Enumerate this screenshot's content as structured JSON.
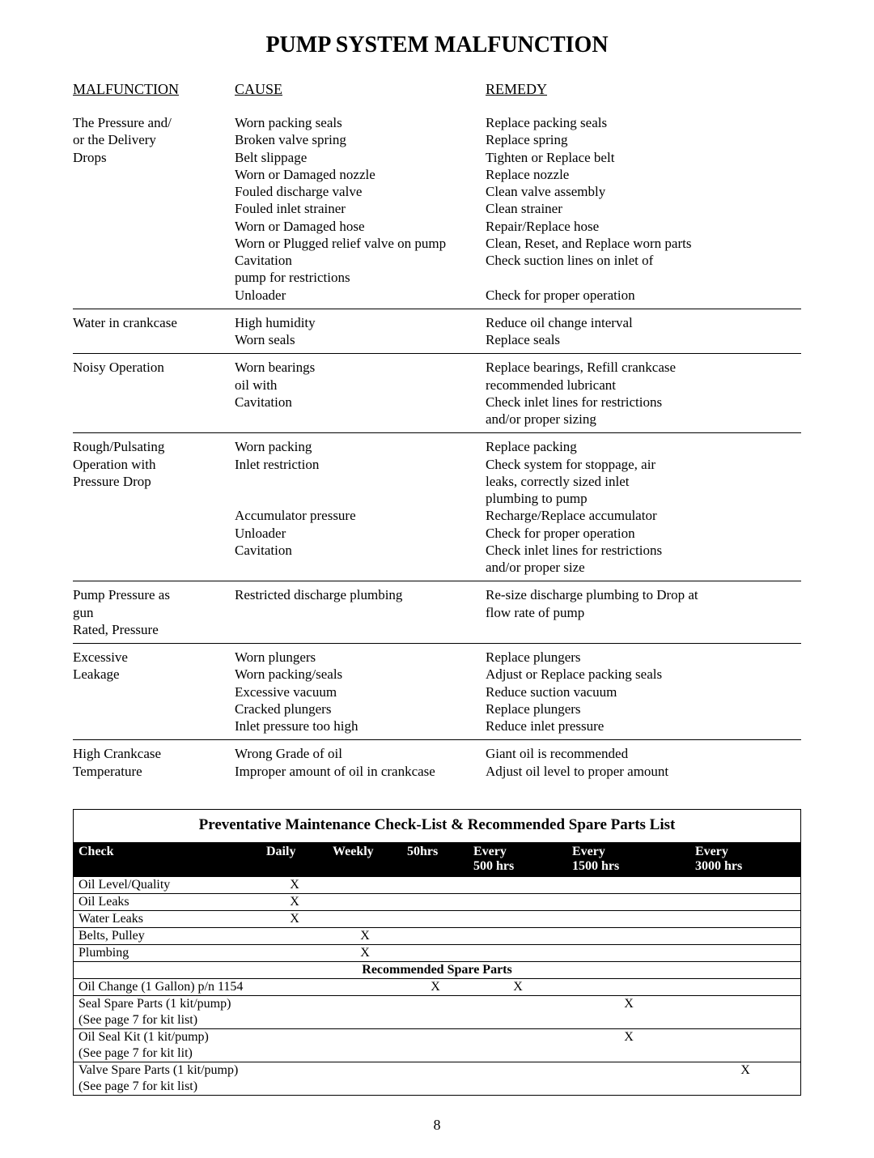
{
  "title": "PUMP SYSTEM MALFUNCTION",
  "headers": {
    "mal": "MALFUNCTION",
    "cause": "CAUSE",
    "remedy": "REMEDY"
  },
  "rows": [
    {
      "mal": [
        "The Pressure and/",
        "or the Delivery",
        "Drops"
      ],
      "cause": [
        "Worn packing seals",
        "Broken valve spring",
        "Belt slippage",
        "Worn or Damaged nozzle",
        "Fouled discharge valve",
        "Fouled inlet strainer",
        "Worn or Damaged hose",
        "Worn or Plugged relief valve on pump",
        "Cavitation",
        "pump for restrictions",
        "Unloader"
      ],
      "remedy": [
        "Replace packing seals",
        "Replace spring",
        "Tighten or Replace belt",
        "Replace nozzle",
        "Clean valve assembly",
        "Clean strainer",
        "Repair/Replace hose",
        "Clean, Reset, and Replace worn parts",
        "Check suction lines on inlet of",
        "",
        "Check for proper operation"
      ]
    },
    {
      "mal": [
        "Water in crankcase"
      ],
      "cause": [
        "High humidity",
        "Worn seals"
      ],
      "remedy": [
        "Reduce oil change interval",
        "Replace seals"
      ]
    },
    {
      "mal": [
        "Noisy Operation"
      ],
      "cause": [
        "Worn bearings",
        "oil with",
        "Cavitation",
        ""
      ],
      "remedy": [
        "Replace bearings, Refill crankcase",
        " recommended lubricant",
        "Check inlet lines for restrictions",
        "and/or proper sizing"
      ]
    },
    {
      "mal": [
        "Rough/Pulsating",
        "Operation with",
        "Pressure Drop"
      ],
      "cause": [
        "Worn packing",
        "Inlet restriction",
        "",
        "",
        "Accumulator pressure",
        "Unloader",
        "Cavitation",
        ""
      ],
      "remedy": [
        "Replace packing",
        "Check system for stoppage, air",
        "leaks, correctly sized inlet",
        "plumbing to pump",
        "Recharge/Replace accumulator",
        "Check for proper operation",
        "Check inlet lines for restrictions",
        "and/or proper size"
      ]
    },
    {
      "mal": [
        "Pump Pressure as",
        "gun",
        "Rated, Pressure"
      ],
      "cause": [
        "Restricted discharge plumbing",
        "",
        ""
      ],
      "remedy": [
        "Re-size discharge plumbing to Drop at",
        "flow rate of pump",
        ""
      ]
    },
    {
      "mal": [
        "Excessive",
        "Leakage"
      ],
      "cause": [
        "Worn plungers",
        "Worn packing/seals",
        "Excessive vacuum",
        "Cracked plungers",
        "Inlet pressure too high"
      ],
      "remedy": [
        "Replace plungers",
        "Adjust or Replace packing seals",
        "Reduce suction vacuum",
        "Replace plungers",
        "Reduce inlet pressure"
      ]
    },
    {
      "mal": [
        "High Crankcase",
        "Temperature"
      ],
      "cause": [
        "Wrong Grade of oil",
        "Improper amount of oil in crankcase"
      ],
      "remedy": [
        "Giant oil is recommended",
        "Adjust oil level to proper amount"
      ]
    }
  ],
  "maint": {
    "title": "Preventative Maintenance Check-List & Recommended Spare Parts List",
    "columns": [
      "Check",
      "Daily",
      "Weekly",
      "50hrs",
      "Every 500 hrs",
      "Every 1500 hrs",
      "Every 3000 hrs"
    ],
    "col_header_html": [
      "Check",
      "Daily",
      "Weekly",
      "50hrs",
      "Every<br>500 hrs",
      "Every<br>1500 hrs",
      "Every<br>3000 hrs"
    ],
    "pre_rows": [
      {
        "check": "Oil Level/Quality",
        "marks": [
          "X",
          "",
          "",
          "",
          "",
          ""
        ]
      },
      {
        "check": "Oil Leaks",
        "marks": [
          "X",
          "",
          "",
          "",
          "",
          ""
        ]
      },
      {
        "check": "Water Leaks",
        "marks": [
          "X",
          "",
          "",
          "",
          "",
          ""
        ]
      },
      {
        "check": "Belts, Pulley",
        "marks": [
          "",
          "X",
          "",
          "",
          "",
          ""
        ]
      },
      {
        "check": "Plumbing",
        "marks": [
          "",
          "X",
          "",
          "",
          "",
          ""
        ]
      }
    ],
    "spare_header": "Recommended Spare Parts",
    "spare_rows": [
      {
        "check": [
          "Oil Change (1 Gallon) p/n 1154"
        ],
        "marks": [
          "",
          "",
          "X",
          "X",
          "",
          ""
        ]
      },
      {
        "check": [
          "Seal Spare Parts (1 kit/pump)",
          "(See page 7 for kit list)"
        ],
        "marks": [
          "",
          "",
          "",
          "",
          "X",
          ""
        ]
      },
      {
        "check": [
          "Oil Seal Kit (1 kit/pump)",
          "(See page 7 for kit lit)"
        ],
        "marks": [
          "",
          "",
          "",
          "",
          "X",
          ""
        ]
      },
      {
        "check": [
          "Valve Spare Parts (1 kit/pump)",
          "(See page 7 for kit list)"
        ],
        "marks": [
          "",
          "",
          "",
          "",
          "",
          "X"
        ]
      }
    ]
  },
  "page_number": "8"
}
